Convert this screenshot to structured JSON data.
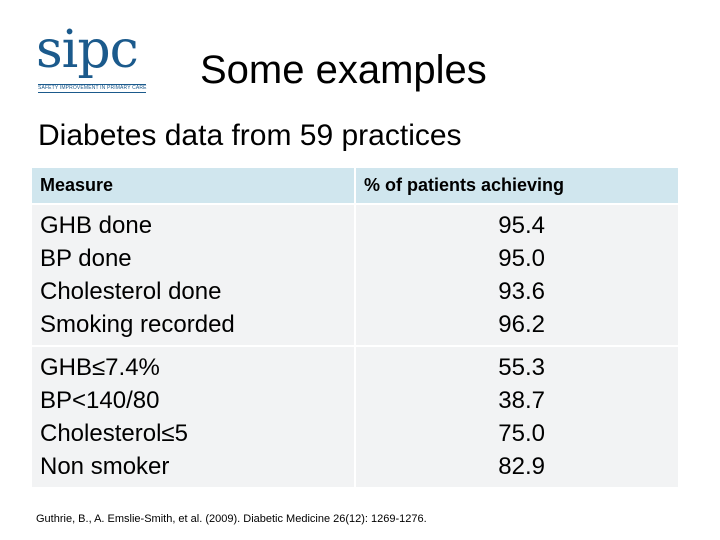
{
  "logo": {
    "word": "sipc",
    "tagline": "SAFETY IMPROVEMENT IN PRIMARY CARE"
  },
  "title": "Some examples",
  "subtitle": "Diabetes data from 59 practices",
  "table": {
    "headers": {
      "measure": "Measure",
      "percent": "% of patients achieving"
    },
    "groups": [
      {
        "rows": [
          {
            "measure": "GHB done",
            "value": "95.4"
          },
          {
            "measure": "BP done",
            "value": "95.0"
          },
          {
            "measure": "Cholesterol done",
            "value": "93.6"
          },
          {
            "measure": "Smoking recorded",
            "value": "96.2"
          }
        ]
      },
      {
        "rows": [
          {
            "measure": "GHB≤7.4%",
            "value": "55.3"
          },
          {
            "measure": "BP<140/80",
            "value": "38.7"
          },
          {
            "measure": "Cholesterol≤5",
            "value": "75.0"
          },
          {
            "measure": "Non smoker",
            "value": "82.9"
          }
        ]
      }
    ]
  },
  "citation": "Guthrie, B., A. Emslie-Smith, et al. (2009). Diabetic Medicine 26(12): 1269-1276.",
  "colors": {
    "brand": "#1b5a8c",
    "header_bg": "#d0e6ee",
    "cell_bg": "#f2f3f4"
  }
}
